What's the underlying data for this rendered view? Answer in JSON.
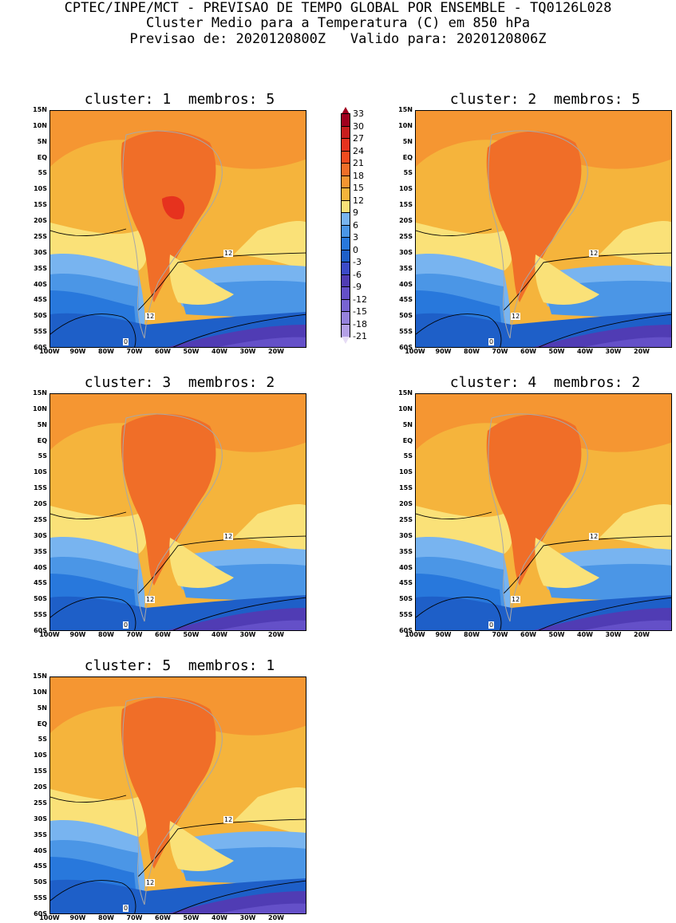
{
  "header": {
    "line1": "CPTEC/INPE/MCT - PREVISAO DE TEMPO GLOBAL POR ENSEMBLE - TQ0126L028",
    "line2": "Cluster Medio para a Temperatura (C) em 850 hPa",
    "line3": "Previsao de: 2020120800Z   Valido para: 2020120806Z"
  },
  "panels": [
    {
      "title": "cluster: 1  membros: 5"
    },
    {
      "title": "cluster: 2  membros: 5"
    },
    {
      "title": "cluster: 3  membros: 2"
    },
    {
      "title": "cluster: 4  membros: 2"
    },
    {
      "title": "cluster: 5  membros: 1"
    }
  ],
  "lat_labels": [
    "15N",
    "10N",
    "5N",
    "EQ",
    "5S",
    "10S",
    "15S",
    "20S",
    "25S",
    "30S",
    "35S",
    "40S",
    "45S",
    "50S",
    "55S",
    "60S"
  ],
  "lon_labels": [
    "100W",
    "90W",
    "80W",
    "70W",
    "60W",
    "50W",
    "40W",
    "30W",
    "20W"
  ],
  "contour_labels": {
    "warm": "12",
    "cold": "0"
  },
  "colorbar": {
    "labels": [
      "33",
      "30",
      "27",
      "24",
      "21",
      "18",
      "15",
      "12",
      "9",
      "6",
      "3",
      "0",
      "-3",
      "-6",
      "-9",
      "-12",
      "-15",
      "-18",
      "-21"
    ],
    "colors": [
      "#a0001e",
      "#c81e1e",
      "#e6321e",
      "#f04b1e",
      "#f06e28",
      "#f59632",
      "#f5b43c",
      "#fae178",
      "#78b4f0",
      "#4b96e6",
      "#2878dc",
      "#1e5fc8",
      "#3c4bc8",
      "#503cb4",
      "#6450c8",
      "#7864d2",
      "#9682dc",
      "#b4a0e6"
    ]
  }
}
